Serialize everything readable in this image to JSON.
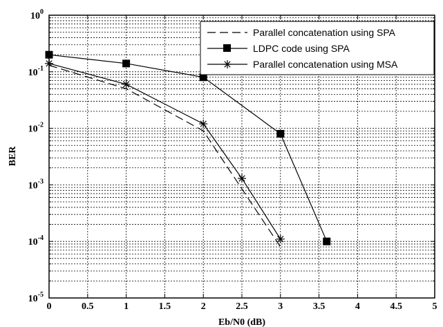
{
  "chart_data": {
    "type": "line",
    "xlabel": "Eb/N0 (dB)",
    "ylabel": "BER",
    "xlim": [
      0,
      5
    ],
    "ylim": [
      1e-05,
      1
    ],
    "yscale": "log",
    "grid": true,
    "legend_position": "top-right",
    "x_ticks": [
      "0",
      "0.5",
      "1",
      "1.5",
      "2",
      "2.5",
      "3",
      "3.5",
      "4",
      "4.5",
      "5"
    ],
    "y_ticks": [
      {
        "base": "10",
        "exp": "0"
      },
      {
        "base": "10",
        "exp": "-1"
      },
      {
        "base": "10",
        "exp": "-2"
      },
      {
        "base": "10",
        "exp": "-3"
      },
      {
        "base": "10",
        "exp": "-4"
      },
      {
        "base": "10",
        "exp": "-5"
      }
    ],
    "series": [
      {
        "name": "Parallel concatenation using SPA",
        "style": "dashed",
        "marker": "none",
        "x": [
          0,
          1,
          2,
          3
        ],
        "y": [
          0.13,
          0.05,
          0.009,
          8e-05
        ]
      },
      {
        "name": "LDPC code using SPA",
        "style": "solid",
        "marker": "square",
        "x": [
          0,
          1,
          2,
          3,
          3.6
        ],
        "y": [
          0.2,
          0.14,
          0.08,
          0.008,
          0.0001
        ]
      },
      {
        "name": "Parallel concatenation using MSA",
        "style": "solid",
        "marker": "star",
        "x": [
          0,
          1,
          2,
          2.5,
          3
        ],
        "y": [
          0.14,
          0.06,
          0.012,
          0.0013,
          0.00011
        ]
      }
    ]
  }
}
